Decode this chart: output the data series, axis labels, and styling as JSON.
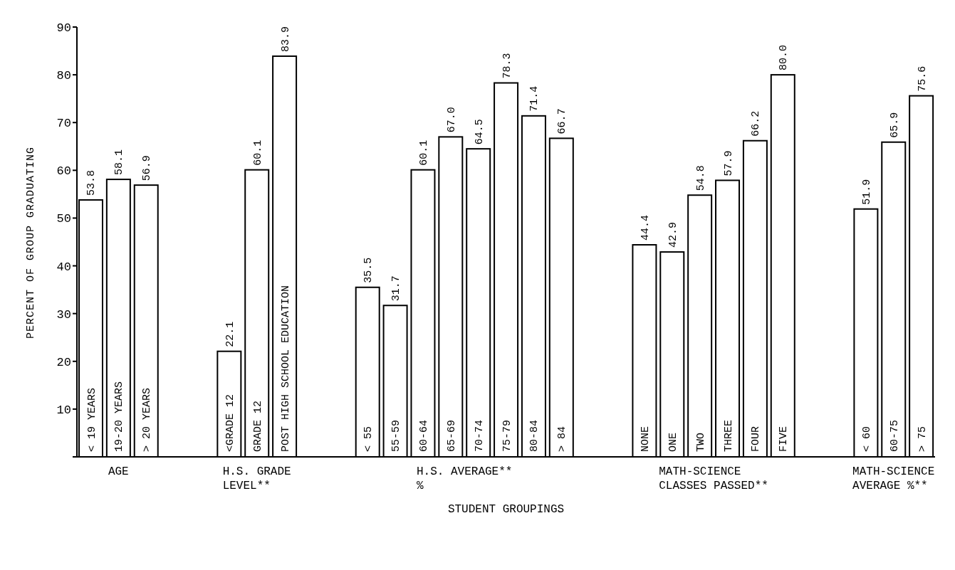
{
  "chart_data": {
    "type": "bar",
    "ylabel": "PERCENT OF GROUP GRADUATING",
    "xlabel": "STUDENT GROUPINGS",
    "categories": [
      "< 19 YEARS",
      "19-20 YEARS",
      "> 20 YEARS",
      null,
      null,
      "<GRADE 12",
      "GRADE 12",
      "POST HIGH SCHOOL EDUCATION",
      null,
      null,
      "< 55",
      "55-59",
      "60-64",
      "65-69",
      "70-74",
      "75-79",
      "80-84",
      "> 84",
      null,
      null,
      "NONE",
      "ONE",
      "TWO",
      "THREE",
      "FOUR",
      "FIVE",
      null,
      null,
      "< 60",
      "60-75",
      "> 75"
    ],
    "values": [
      53.8,
      58.1,
      56.9,
      null,
      null,
      22.1,
      60.1,
      83.9,
      null,
      null,
      35.5,
      31.7,
      60.1,
      67.0,
      64.5,
      78.3,
      71.4,
      66.7,
      null,
      null,
      44.4,
      42.9,
      54.8,
      57.9,
      66.2,
      80.0,
      null,
      null,
      51.9,
      65.9,
      75.6
    ],
    "value_labels": [
      "53.8",
      "58.1",
      "56.9",
      null,
      null,
      "22.1",
      "60.1",
      "83.9",
      null,
      null,
      "35.5",
      "31.7",
      "60.1",
      "67.0",
      "64.5",
      "78.3",
      "71.4",
      "66.7",
      null,
      null,
      "44.4",
      "42.9",
      "54.8",
      "57.9",
      "66.2",
      "80.0",
      null,
      null,
      "51.9",
      "65.9",
      "75.6"
    ],
    "color": "#ffffff",
    "ylim": [
      0,
      90
    ],
    "yticks": [
      {
        "value": 0,
        "label": null
      },
      10,
      20,
      30,
      40,
      50,
      60,
      70,
      80,
      90
    ],
    "annotations": [
      "AGE",
      "H.S. GRADE\nLEVEL**",
      "H.S. AVERAGE**\n%",
      "MATH-SCIENCE\nCLASSES PASSED**",
      "MATH-SCIENCE\nAVERAGE %**"
    ]
  }
}
